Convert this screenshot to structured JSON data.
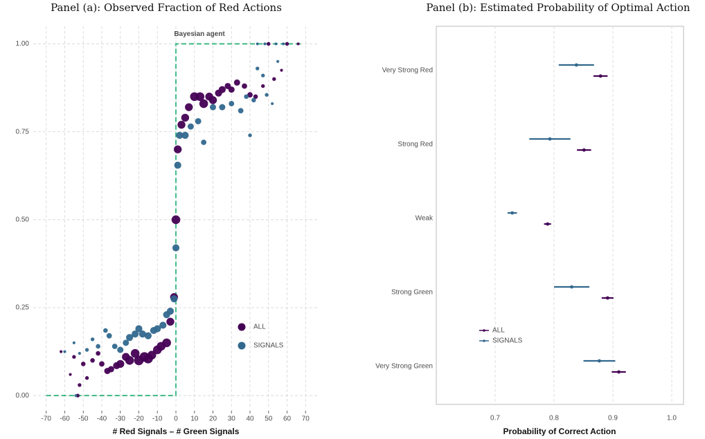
{
  "chart_data": [
    {
      "type": "bubble",
      "title": "Panel (a): Observed Fraction of Red Actions",
      "x_label": "# Red Signals – # Green Signals",
      "xlim": [
        -77,
        77
      ],
      "xticks": [
        -70,
        -60,
        -50,
        -40,
        -30,
        -20,
        -10,
        0,
        10,
        20,
        30,
        40,
        50,
        60,
        70
      ],
      "ylim": [
        -0.035,
        1.05
      ],
      "yticks": [
        {
          "value": 0,
          "label": "0.00"
        },
        {
          "value": 0.25,
          "label": "0.25"
        },
        {
          "value": 0.5,
          "label": "0.50"
        },
        {
          "value": 0.75,
          "label": "0.75"
        },
        {
          "value": 1,
          "label": "1.00"
        }
      ],
      "grid": true,
      "legend": "bottom-right",
      "reference_line": {
        "name": "Bayesian agent",
        "color": "#2fb47c",
        "x": [
          -70,
          0,
          0,
          68
        ],
        "values": [
          0,
          0,
          1,
          1
        ]
      },
      "series": [
        {
          "name": "ALL",
          "color": "#440154",
          "x": [
            -62,
            -57,
            -55,
            -52,
            -50,
            -48,
            -45,
            -42,
            -40,
            -37,
            -35,
            -32,
            -30,
            -27,
            -25,
            -22,
            -20,
            -17,
            -15,
            -13,
            -10,
            -8,
            -5,
            -3,
            -1,
            0,
            1,
            3,
            5,
            7,
            10,
            13,
            15,
            18,
            20,
            23,
            25,
            28,
            30,
            33,
            37,
            40,
            43,
            47,
            53,
            57,
            50,
            60,
            66,
            -53
          ],
          "values": [
            0.125,
            0.06,
            0.11,
            0.03,
            0.09,
            0.05,
            0.1,
            0.12,
            0.09,
            0.07,
            0.075,
            0.085,
            0.09,
            0.11,
            0.1,
            0.12,
            0.1,
            0.11,
            0.105,
            0.115,
            0.13,
            0.14,
            0.15,
            0.21,
            0.28,
            0.5,
            0.7,
            0.77,
            0.79,
            0.82,
            0.85,
            0.85,
            0.83,
            0.85,
            0.84,
            0.86,
            0.87,
            0.88,
            0.87,
            0.89,
            0.88,
            0.855,
            0.85,
            0.88,
            0.9,
            0.925,
            1.0,
            1.0,
            1.0,
            0.0
          ],
          "sizes": [
            1,
            1,
            2,
            2,
            3,
            2,
            3,
            3,
            4,
            5,
            5,
            6,
            7,
            7,
            8,
            8,
            9,
            9,
            9,
            8,
            8,
            8,
            8,
            7,
            7,
            8,
            7,
            7,
            7,
            7,
            8,
            8,
            8,
            7,
            7,
            6,
            6,
            5,
            5,
            5,
            4,
            4,
            3,
            2,
            2,
            1,
            2,
            2,
            1,
            2
          ]
        },
        {
          "name": "SIGNALS",
          "color": "#31688e",
          "x": [
            -60,
            -55,
            -52,
            -48,
            -45,
            -42,
            -38,
            -36,
            -33,
            -30,
            -27,
            -25,
            -22,
            -20,
            -18,
            -15,
            -12,
            -10,
            -7,
            -5,
            -3,
            -1,
            0,
            1,
            2,
            5,
            8,
            12,
            15,
            20,
            25,
            30,
            35,
            38,
            40,
            42,
            44,
            47,
            49,
            52,
            55,
            44,
            48,
            54,
            58,
            -54
          ],
          "values": [
            0.125,
            0.15,
            0.12,
            0.13,
            0.16,
            0.14,
            0.185,
            0.17,
            0.14,
            0.13,
            0.15,
            0.165,
            0.175,
            0.19,
            0.175,
            0.17,
            0.185,
            0.19,
            0.2,
            0.23,
            0.24,
            0.275,
            0.42,
            0.655,
            0.74,
            0.74,
            0.765,
            0.78,
            0.72,
            0.82,
            0.82,
            0.83,
            0.81,
            0.85,
            0.74,
            0.84,
            0.93,
            0.91,
            0.855,
            0.83,
            0.95,
            1.0,
            1.0,
            1.0,
            1.0,
            0.0
          ],
          "sizes": [
            1,
            1,
            1,
            2,
            2,
            3,
            3,
            4,
            4,
            5,
            5,
            6,
            6,
            6,
            6,
            6,
            6,
            6,
            6,
            6,
            6,
            6,
            6,
            6,
            6,
            6,
            5,
            5,
            4,
            5,
            5,
            4,
            4,
            3,
            2,
            3,
            2,
            2,
            2,
            1,
            1,
            1,
            1,
            1,
            1,
            1
          ]
        }
      ]
    },
    {
      "type": "errorbar",
      "title": "Panel (b): Estimated Probability of Optimal Action",
      "x_label": "Probability of Correct Action",
      "categories": [
        "Very Strong Red",
        "Strong Red",
        "Weak",
        "Strong Green",
        "Very Strong Green"
      ],
      "xlim": [
        0.6,
        1.02
      ],
      "xticks": [
        0.7,
        0.8,
        0.9,
        {
          "value": 1,
          "label": "1.0"
        }
      ],
      "grid": true,
      "legend": "bottom-left",
      "series": [
        {
          "name": "ALL",
          "color": "#440154",
          "values": [
            0.879,
            0.851,
            0.789,
            0.891,
            0.91
          ],
          "errors": [
            0.012,
            0.012,
            0.006,
            0.01,
            0.012
          ]
        },
        {
          "name": "SIGNALS",
          "color": "#31688e",
          "values": [
            0.838,
            0.793,
            0.729,
            0.83,
            0.877
          ],
          "errors": [
            0.03,
            0.035,
            0.008,
            0.03,
            0.027
          ]
        }
      ]
    }
  ]
}
